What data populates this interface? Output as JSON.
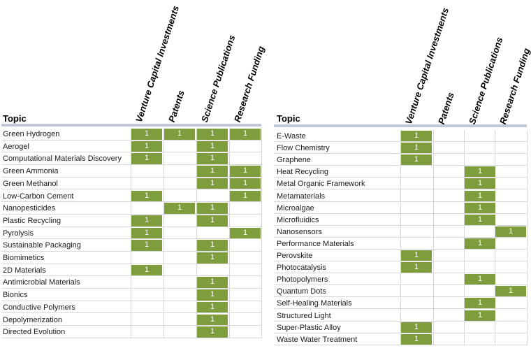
{
  "chart_data": [
    {
      "type": "table",
      "row_header": "Topic",
      "columns": [
        "Venture Capital Investments",
        "Patents",
        "Science Publications",
        "Research Funding"
      ],
      "rows": [
        {
          "topic": "Green Hydrogen",
          "values": [
            1,
            1,
            1,
            1
          ]
        },
        {
          "topic": "Aerogel",
          "values": [
            1,
            null,
            1,
            null
          ]
        },
        {
          "topic": "Computational Materials Discovery",
          "values": [
            1,
            null,
            1,
            null
          ]
        },
        {
          "topic": "Green Ammonia",
          "values": [
            null,
            null,
            1,
            1
          ]
        },
        {
          "topic": "Green Methanol",
          "values": [
            null,
            null,
            1,
            1
          ]
        },
        {
          "topic": "Low-Carbon Cement",
          "values": [
            1,
            null,
            null,
            1
          ]
        },
        {
          "topic": "Nanopesticides",
          "values": [
            null,
            1,
            1,
            null
          ]
        },
        {
          "topic": "Plastic Recycling",
          "values": [
            1,
            null,
            1,
            null
          ]
        },
        {
          "topic": "Pyrolysis",
          "values": [
            1,
            null,
            null,
            1
          ]
        },
        {
          "topic": "Sustainable Packaging",
          "values": [
            1,
            null,
            1,
            null
          ]
        },
        {
          "topic": "Biomimetics",
          "values": [
            null,
            null,
            1,
            null
          ]
        },
        {
          "topic": "2D Materials",
          "values": [
            1,
            null,
            null,
            null
          ]
        },
        {
          "topic": "Antimicrobial Materials",
          "values": [
            null,
            null,
            1,
            null
          ]
        },
        {
          "topic": "Bionics",
          "values": [
            null,
            null,
            1,
            null
          ]
        },
        {
          "topic": "Conductive Polymers",
          "values": [
            null,
            null,
            1,
            null
          ]
        },
        {
          "topic": "Depolymerization",
          "values": [
            null,
            null,
            1,
            null
          ]
        },
        {
          "topic": "Directed Evolution",
          "values": [
            null,
            null,
            1,
            null
          ]
        }
      ]
    },
    {
      "type": "table",
      "row_header": "Topic",
      "columns": [
        "Venture Capital Investments",
        "Patents",
        "Science Publications",
        "Research Funding"
      ],
      "rows": [
        {
          "topic": "E-Waste",
          "values": [
            1,
            null,
            null,
            null
          ]
        },
        {
          "topic": "Flow Chemistry",
          "values": [
            1,
            null,
            null,
            null
          ]
        },
        {
          "topic": "Graphene",
          "values": [
            1,
            null,
            null,
            null
          ]
        },
        {
          "topic": "Heat Recycling",
          "values": [
            null,
            null,
            1,
            null
          ]
        },
        {
          "topic": "Metal Organic Framework",
          "values": [
            null,
            null,
            1,
            null
          ]
        },
        {
          "topic": "Metamaterials",
          "values": [
            null,
            null,
            1,
            null
          ]
        },
        {
          "topic": "Microalgae",
          "values": [
            null,
            null,
            1,
            null
          ]
        },
        {
          "topic": "Microfluidics",
          "values": [
            null,
            null,
            1,
            null
          ]
        },
        {
          "topic": "Nanosensors",
          "values": [
            null,
            null,
            null,
            1
          ]
        },
        {
          "topic": "Performance Materials",
          "values": [
            null,
            null,
            1,
            null
          ]
        },
        {
          "topic": "Perovskite",
          "values": [
            1,
            null,
            null,
            null
          ]
        },
        {
          "topic": "Photocatalysis",
          "values": [
            1,
            null,
            null,
            null
          ]
        },
        {
          "topic": "Photopolymers",
          "values": [
            null,
            null,
            1,
            null
          ]
        },
        {
          "topic": "Quantum Dots",
          "values": [
            null,
            null,
            null,
            1
          ]
        },
        {
          "topic": "Self-Healing Materials",
          "values": [
            null,
            null,
            1,
            null
          ]
        },
        {
          "topic": "Structured Light",
          "values": [
            null,
            null,
            1,
            null
          ]
        },
        {
          "topic": "Super-Plastic Alloy",
          "values": [
            1,
            null,
            null,
            null
          ]
        },
        {
          "topic": "Waste Water Treatment",
          "values": [
            1,
            null,
            null,
            null
          ]
        }
      ]
    }
  ],
  "colors": {
    "cell_fill": "#7e9d3c",
    "cell_text": "#ffffff",
    "header_bar": "#bfc8d6",
    "grid": "#d9d9d9"
  }
}
